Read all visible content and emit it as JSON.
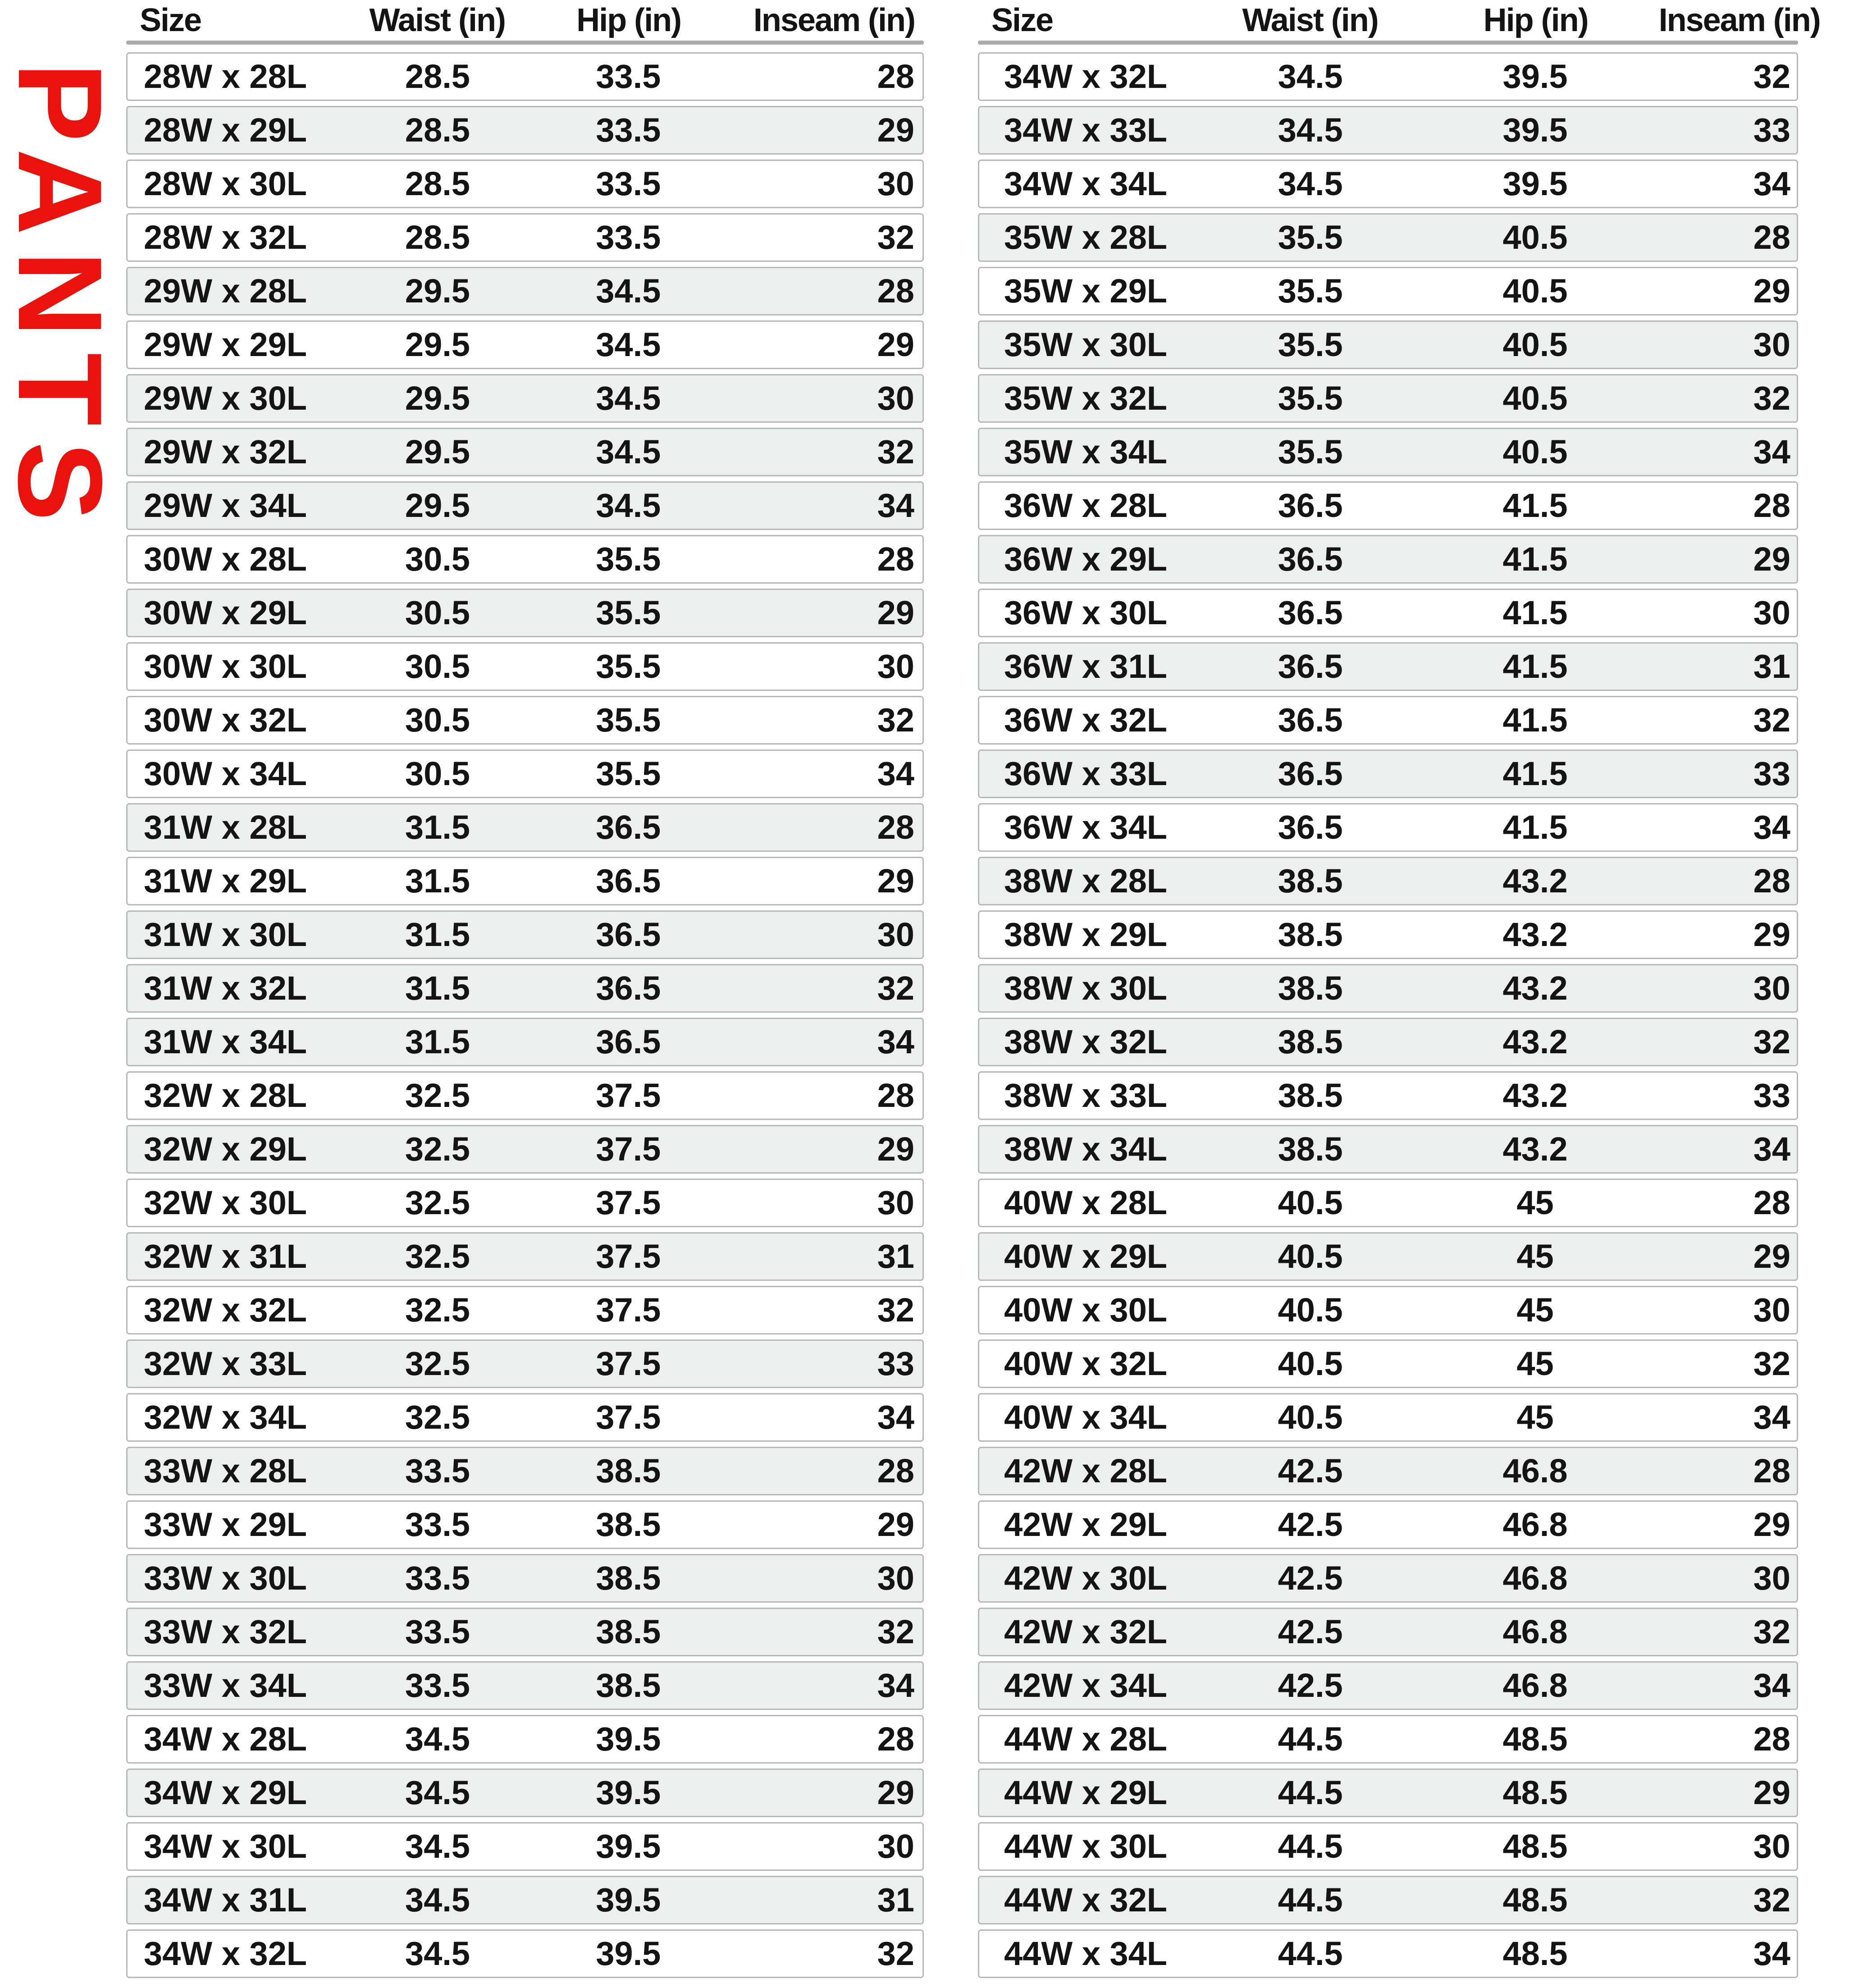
{
  "page": {
    "label": "PANTS",
    "label_color": "#e8130d",
    "background": "#ffffff",
    "shaded_row_color": "#edefee",
    "row_border_color": "#b5b9b7"
  },
  "tables": [
    {
      "name": "pants-size-table-left",
      "headers": [
        "Size",
        "Waist (in)",
        "Hip (in)",
        "Inseam (in)"
      ],
      "rows": [
        {
          "size": "28W x 28L",
          "waist": "28.5",
          "hip": "33.5",
          "inseam": "28",
          "shaded": false
        },
        {
          "size": "28W x 29L",
          "waist": "28.5",
          "hip": "33.5",
          "inseam": "29",
          "shaded": true
        },
        {
          "size": "28W x 30L",
          "waist": "28.5",
          "hip": "33.5",
          "inseam": "30",
          "shaded": false
        },
        {
          "size": "28W x 32L",
          "waist": "28.5",
          "hip": "33.5",
          "inseam": "32",
          "shaded": false
        },
        {
          "size": "29W x 28L",
          "waist": "29.5",
          "hip": "34.5",
          "inseam": "28",
          "shaded": true
        },
        {
          "size": "29W x 29L",
          "waist": "29.5",
          "hip": "34.5",
          "inseam": "29",
          "shaded": false
        },
        {
          "size": "29W x 30L",
          "waist": "29.5",
          "hip": "34.5",
          "inseam": "30",
          "shaded": true
        },
        {
          "size": "29W x 32L",
          "waist": "29.5",
          "hip": "34.5",
          "inseam": "32",
          "shaded": true
        },
        {
          "size": "29W x 34L",
          "waist": "29.5",
          "hip": "34.5",
          "inseam": "34",
          "shaded": true
        },
        {
          "size": "30W x 28L",
          "waist": "30.5",
          "hip": "35.5",
          "inseam": "28",
          "shaded": false
        },
        {
          "size": "30W x 29L",
          "waist": "30.5",
          "hip": "35.5",
          "inseam": "29",
          "shaded": true
        },
        {
          "size": "30W x 30L",
          "waist": "30.5",
          "hip": "35.5",
          "inseam": "30",
          "shaded": false
        },
        {
          "size": "30W x 32L",
          "waist": "30.5",
          "hip": "35.5",
          "inseam": "32",
          "shaded": false
        },
        {
          "size": "30W x 34L",
          "waist": "30.5",
          "hip": "35.5",
          "inseam": "34",
          "shaded": false
        },
        {
          "size": "31W x 28L",
          "waist": "31.5",
          "hip": "36.5",
          "inseam": "28",
          "shaded": true
        },
        {
          "size": "31W x 29L",
          "waist": "31.5",
          "hip": "36.5",
          "inseam": "29",
          "shaded": false
        },
        {
          "size": "31W x 30L",
          "waist": "31.5",
          "hip": "36.5",
          "inseam": "30",
          "shaded": true
        },
        {
          "size": "31W x 32L",
          "waist": "31.5",
          "hip": "36.5",
          "inseam": "32",
          "shaded": true
        },
        {
          "size": "31W x 34L",
          "waist": "31.5",
          "hip": "36.5",
          "inseam": "34",
          "shaded": true
        },
        {
          "size": "32W x 28L",
          "waist": "32.5",
          "hip": "37.5",
          "inseam": "28",
          "shaded": false
        },
        {
          "size": "32W x 29L",
          "waist": "32.5",
          "hip": "37.5",
          "inseam": "29",
          "shaded": true
        },
        {
          "size": "32W x 30L",
          "waist": "32.5",
          "hip": "37.5",
          "inseam": "30",
          "shaded": false
        },
        {
          "size": "32W x 31L",
          "waist": "32.5",
          "hip": "37.5",
          "inseam": "31",
          "shaded": true
        },
        {
          "size": "32W x 32L",
          "waist": "32.5",
          "hip": "37.5",
          "inseam": "32",
          "shaded": false
        },
        {
          "size": "32W x 33L",
          "waist": "32.5",
          "hip": "37.5",
          "inseam": "33",
          "shaded": true
        },
        {
          "size": "32W x 34L",
          "waist": "32.5",
          "hip": "37.5",
          "inseam": "34",
          "shaded": false
        },
        {
          "size": "33W x 28L",
          "waist": "33.5",
          "hip": "38.5",
          "inseam": "28",
          "shaded": true
        },
        {
          "size": "33W x 29L",
          "waist": "33.5",
          "hip": "38.5",
          "inseam": "29",
          "shaded": false
        },
        {
          "size": "33W x 30L",
          "waist": "33.5",
          "hip": "38.5",
          "inseam": "30",
          "shaded": true
        },
        {
          "size": "33W x 32L",
          "waist": "33.5",
          "hip": "38.5",
          "inseam": "32",
          "shaded": true
        },
        {
          "size": "33W x 34L",
          "waist": "33.5",
          "hip": "38.5",
          "inseam": "34",
          "shaded": true
        },
        {
          "size": "34W x 28L",
          "waist": "34.5",
          "hip": "39.5",
          "inseam": "28",
          "shaded": false
        },
        {
          "size": "34W x 29L",
          "waist": "34.5",
          "hip": "39.5",
          "inseam": "29",
          "shaded": true
        },
        {
          "size": "34W x 30L",
          "waist": "34.5",
          "hip": "39.5",
          "inseam": "30",
          "shaded": false
        },
        {
          "size": "34W x 31L",
          "waist": "34.5",
          "hip": "39.5",
          "inseam": "31",
          "shaded": true
        },
        {
          "size": "34W x 32L",
          "waist": "34.5",
          "hip": "39.5",
          "inseam": "32",
          "shaded": false
        }
      ]
    },
    {
      "name": "pants-size-table-right",
      "headers": [
        "Size",
        "Waist (in)",
        "Hip (in)",
        "Inseam (in)"
      ],
      "rows": [
        {
          "size": "34W x 32L",
          "waist": "34.5",
          "hip": "39.5",
          "inseam": "32",
          "shaded": false
        },
        {
          "size": "34W x 33L",
          "waist": "34.5",
          "hip": "39.5",
          "inseam": "33",
          "shaded": true
        },
        {
          "size": "34W x 34L",
          "waist": "34.5",
          "hip": "39.5",
          "inseam": "34",
          "shaded": false
        },
        {
          "size": "35W x 28L",
          "waist": "35.5",
          "hip": "40.5",
          "inseam": "28",
          "shaded": true
        },
        {
          "size": "35W x 29L",
          "waist": "35.5",
          "hip": "40.5",
          "inseam": "29",
          "shaded": false
        },
        {
          "size": "35W x 30L",
          "waist": "35.5",
          "hip": "40.5",
          "inseam": "30",
          "shaded": true
        },
        {
          "size": "35W x 32L",
          "waist": "35.5",
          "hip": "40.5",
          "inseam": "32",
          "shaded": true
        },
        {
          "size": "35W x 34L",
          "waist": "35.5",
          "hip": "40.5",
          "inseam": "34",
          "shaded": true
        },
        {
          "size": "36W x 28L",
          "waist": "36.5",
          "hip": "41.5",
          "inseam": "28",
          "shaded": false
        },
        {
          "size": "36W x 29L",
          "waist": "36.5",
          "hip": "41.5",
          "inseam": "29",
          "shaded": true
        },
        {
          "size": "36W x 30L",
          "waist": "36.5",
          "hip": "41.5",
          "inseam": "30",
          "shaded": false
        },
        {
          "size": "36W x 31L",
          "waist": "36.5",
          "hip": "41.5",
          "inseam": "31",
          "shaded": true
        },
        {
          "size": "36W x 32L",
          "waist": "36.5",
          "hip": "41.5",
          "inseam": "32",
          "shaded": false
        },
        {
          "size": "36W x 33L",
          "waist": "36.5",
          "hip": "41.5",
          "inseam": "33",
          "shaded": true
        },
        {
          "size": "36W x 34L",
          "waist": "36.5",
          "hip": "41.5",
          "inseam": "34",
          "shaded": false
        },
        {
          "size": "38W x 28L",
          "waist": "38.5",
          "hip": "43.2",
          "inseam": "28",
          "shaded": true
        },
        {
          "size": "38W x 29L",
          "waist": "38.5",
          "hip": "43.2",
          "inseam": "29",
          "shaded": false
        },
        {
          "size": "38W x 30L",
          "waist": "38.5",
          "hip": "43.2",
          "inseam": "30",
          "shaded": true
        },
        {
          "size": "38W x 32L",
          "waist": "38.5",
          "hip": "43.2",
          "inseam": "32",
          "shaded": true
        },
        {
          "size": "38W x 33L",
          "waist": "38.5",
          "hip": "43.2",
          "inseam": "33",
          "shaded": false
        },
        {
          "size": "38W x 34L",
          "waist": "38.5",
          "hip": "43.2",
          "inseam": "34",
          "shaded": true
        },
        {
          "size": "40W x 28L",
          "waist": "40.5",
          "hip": "45",
          "inseam": "28",
          "shaded": false
        },
        {
          "size": "40W x 29L",
          "waist": "40.5",
          "hip": "45",
          "inseam": "29",
          "shaded": true
        },
        {
          "size": "40W x 30L",
          "waist": "40.5",
          "hip": "45",
          "inseam": "30",
          "shaded": false
        },
        {
          "size": "40W x 32L",
          "waist": "40.5",
          "hip": "45",
          "inseam": "32",
          "shaded": false
        },
        {
          "size": "40W x 34L",
          "waist": "40.5",
          "hip": "45",
          "inseam": "34",
          "shaded": false
        },
        {
          "size": "42W x 28L",
          "waist": "42.5",
          "hip": "46.8",
          "inseam": "28",
          "shaded": true
        },
        {
          "size": "42W x 29L",
          "waist": "42.5",
          "hip": "46.8",
          "inseam": "29",
          "shaded": false
        },
        {
          "size": "42W x 30L",
          "waist": "42.5",
          "hip": "46.8",
          "inseam": "30",
          "shaded": true
        },
        {
          "size": "42W x 32L",
          "waist": "42.5",
          "hip": "46.8",
          "inseam": "32",
          "shaded": true
        },
        {
          "size": "42W x 34L",
          "waist": "42.5",
          "hip": "46.8",
          "inseam": "34",
          "shaded": true
        },
        {
          "size": "44W x 28L",
          "waist": "44.5",
          "hip": "48.5",
          "inseam": "28",
          "shaded": false
        },
        {
          "size": "44W x 29L",
          "waist": "44.5",
          "hip": "48.5",
          "inseam": "29",
          "shaded": true
        },
        {
          "size": "44W x 30L",
          "waist": "44.5",
          "hip": "48.5",
          "inseam": "30",
          "shaded": false
        },
        {
          "size": "44W x 32L",
          "waist": "44.5",
          "hip": "48.5",
          "inseam": "32",
          "shaded": true
        },
        {
          "size": "44W x 34L",
          "waist": "44.5",
          "hip": "48.5",
          "inseam": "34",
          "shaded": false
        }
      ]
    }
  ],
  "chart_data": [
    {
      "type": "table",
      "title": "PANTS size chart (left table)",
      "columns": [
        "Size",
        "Waist (in)",
        "Hip (in)",
        "Inseam (in)"
      ],
      "rows": [
        [
          "28W x 28L",
          28.5,
          33.5,
          28
        ],
        [
          "28W x 29L",
          28.5,
          33.5,
          29
        ],
        [
          "28W x 30L",
          28.5,
          33.5,
          30
        ],
        [
          "28W x 32L",
          28.5,
          33.5,
          32
        ],
        [
          "29W x 28L",
          29.5,
          34.5,
          28
        ],
        [
          "29W x 29L",
          29.5,
          34.5,
          29
        ],
        [
          "29W x 30L",
          29.5,
          34.5,
          30
        ],
        [
          "29W x 32L",
          29.5,
          34.5,
          32
        ],
        [
          "29W x 34L",
          29.5,
          34.5,
          34
        ],
        [
          "30W x 28L",
          30.5,
          35.5,
          28
        ],
        [
          "30W x 29L",
          30.5,
          35.5,
          29
        ],
        [
          "30W x 30L",
          30.5,
          35.5,
          30
        ],
        [
          "30W x 32L",
          30.5,
          35.5,
          32
        ],
        [
          "30W x 34L",
          30.5,
          35.5,
          34
        ],
        [
          "31W x 28L",
          31.5,
          36.5,
          28
        ],
        [
          "31W x 29L",
          31.5,
          36.5,
          29
        ],
        [
          "31W x 30L",
          31.5,
          36.5,
          30
        ],
        [
          "31W x 32L",
          31.5,
          36.5,
          32
        ],
        [
          "31W x 34L",
          31.5,
          36.5,
          34
        ],
        [
          "32W x 28L",
          32.5,
          37.5,
          28
        ],
        [
          "32W x 29L",
          32.5,
          37.5,
          29
        ],
        [
          "32W x 30L",
          32.5,
          37.5,
          30
        ],
        [
          "32W x 31L",
          32.5,
          37.5,
          31
        ],
        [
          "32W x 32L",
          32.5,
          37.5,
          32
        ],
        [
          "32W x 33L",
          32.5,
          37.5,
          33
        ],
        [
          "32W x 34L",
          32.5,
          37.5,
          34
        ],
        [
          "33W x 28L",
          33.5,
          38.5,
          28
        ],
        [
          "33W x 29L",
          33.5,
          38.5,
          29
        ],
        [
          "33W x 30L",
          33.5,
          38.5,
          30
        ],
        [
          "33W x 32L",
          33.5,
          38.5,
          32
        ],
        [
          "33W x 34L",
          33.5,
          38.5,
          34
        ],
        [
          "34W x 28L",
          34.5,
          39.5,
          28
        ],
        [
          "34W x 29L",
          34.5,
          39.5,
          29
        ],
        [
          "34W x 30L",
          34.5,
          39.5,
          30
        ],
        [
          "34W x 31L",
          34.5,
          39.5,
          31
        ],
        [
          "34W x 32L",
          34.5,
          39.5,
          32
        ]
      ]
    },
    {
      "type": "table",
      "title": "PANTS size chart (right table)",
      "columns": [
        "Size",
        "Waist (in)",
        "Hip (in)",
        "Inseam (in)"
      ],
      "rows": [
        [
          "34W x 32L",
          34.5,
          39.5,
          32
        ],
        [
          "34W x 33L",
          34.5,
          39.5,
          33
        ],
        [
          "34W x 34L",
          34.5,
          39.5,
          34
        ],
        [
          "35W x 28L",
          35.5,
          40.5,
          28
        ],
        [
          "35W x 29L",
          35.5,
          40.5,
          29
        ],
        [
          "35W x 30L",
          35.5,
          40.5,
          30
        ],
        [
          "35W x 32L",
          35.5,
          40.5,
          32
        ],
        [
          "35W x 34L",
          35.5,
          40.5,
          34
        ],
        [
          "36W x 28L",
          36.5,
          41.5,
          28
        ],
        [
          "36W x 29L",
          36.5,
          41.5,
          29
        ],
        [
          "36W x 30L",
          36.5,
          41.5,
          30
        ],
        [
          "36W x 31L",
          36.5,
          41.5,
          31
        ],
        [
          "36W x 32L",
          36.5,
          41.5,
          32
        ],
        [
          "36W x 33L",
          36.5,
          41.5,
          33
        ],
        [
          "36W x 34L",
          36.5,
          41.5,
          34
        ],
        [
          "38W x 28L",
          38.5,
          43.2,
          28
        ],
        [
          "38W x 29L",
          38.5,
          43.2,
          29
        ],
        [
          "38W x 30L",
          38.5,
          43.2,
          30
        ],
        [
          "38W x 32L",
          38.5,
          43.2,
          32
        ],
        [
          "38W x 33L",
          38.5,
          43.2,
          33
        ],
        [
          "38W x 34L",
          38.5,
          43.2,
          34
        ],
        [
          "40W x 28L",
          40.5,
          45,
          28
        ],
        [
          "40W x 29L",
          40.5,
          45,
          29
        ],
        [
          "40W x 30L",
          40.5,
          45,
          30
        ],
        [
          "40W x 32L",
          40.5,
          45,
          32
        ],
        [
          "40W x 34L",
          40.5,
          45,
          34
        ],
        [
          "42W x 28L",
          42.5,
          46.8,
          28
        ],
        [
          "42W x 29L",
          42.5,
          46.8,
          29
        ],
        [
          "42W x 30L",
          42.5,
          46.8,
          30
        ],
        [
          "42W x 32L",
          42.5,
          46.8,
          32
        ],
        [
          "42W x 34L",
          42.5,
          46.8,
          34
        ],
        [
          "44W x 28L",
          44.5,
          48.5,
          28
        ],
        [
          "44W x 29L",
          44.5,
          48.5,
          29
        ],
        [
          "44W x 30L",
          44.5,
          48.5,
          30
        ],
        [
          "44W x 32L",
          44.5,
          48.5,
          32
        ],
        [
          "44W x 34L",
          44.5,
          48.5,
          34
        ]
      ]
    }
  ]
}
